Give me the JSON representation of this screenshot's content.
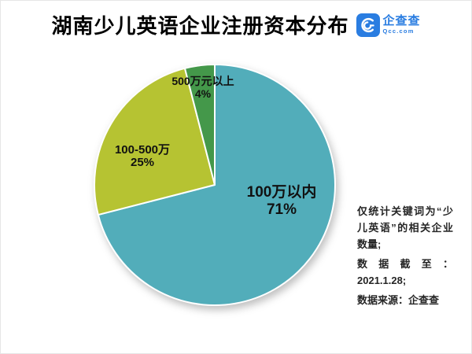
{
  "header": {
    "title": "湖南少儿英语企业注册资本分布",
    "logo": {
      "brand": "企查查",
      "domain": "Qcc.com",
      "color": "#2a7de1"
    }
  },
  "chart_data": {
    "type": "pie",
    "title": "湖南少儿英语企业注册资本分布",
    "unit": "percent",
    "direction": "clockwise",
    "start_angle_deg": 0,
    "slices": [
      {
        "label": "100万以内",
        "value": 71,
        "pct_label": "71%",
        "color": "#52adba"
      },
      {
        "label": "100-500万",
        "value": 25,
        "pct_label": "25%",
        "color": "#b6c332"
      },
      {
        "label": "500万元以上",
        "value": 4,
        "pct_label": "4%",
        "color": "#44984a"
      }
    ]
  },
  "notes": {
    "line1": "仅统计关键词为“少儿英语”的相关企业数量;",
    "line2": "数据截至：2021.1.28;",
    "line3": "数据来源：企查查"
  },
  "colors": {
    "background": "#ffffff",
    "text": "#111111",
    "slice_border": "#ffffff"
  }
}
